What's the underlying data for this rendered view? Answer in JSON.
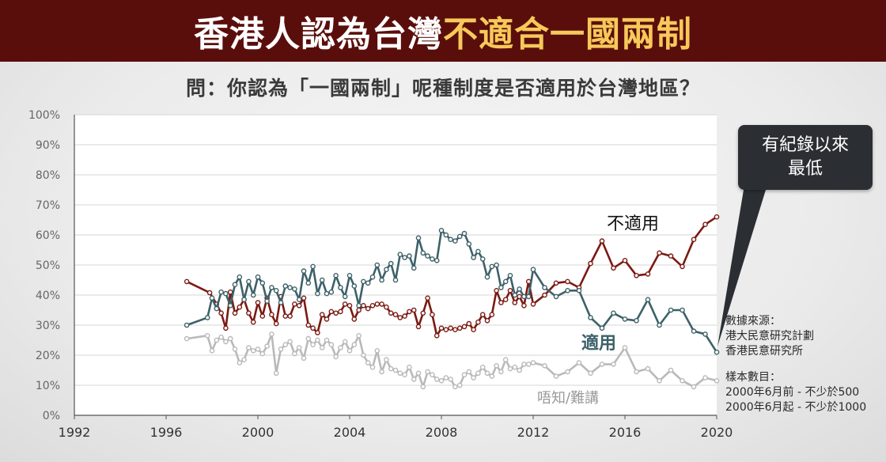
{
  "banner": {
    "title_main": "香港人認為台灣",
    "title_highlight": "不適合一國兩制",
    "bg_color": "#5a0e0b",
    "highlight_color": "#f6c95a"
  },
  "question": "問：你認為「一國兩制」呢種制度是否適用於台灣地區？",
  "callout": {
    "line1": "有紀錄以來",
    "line2": "最低"
  },
  "source_note": {
    "heading": "數據來源：",
    "line1": "港大民意研究計劃",
    "line2": "香港民意研究所"
  },
  "sample_note": {
    "heading": "樣本數目：",
    "line1": "2000年6月前 - 不少於500",
    "line2": "2000年6月起 - 不少於1000"
  },
  "chart_data": {
    "type": "line",
    "title": "",
    "xlabel": "",
    "ylabel": "",
    "xlim": [
      1992,
      2020
    ],
    "ylim": [
      0,
      100
    ],
    "x_ticks": [
      "1992",
      "1996",
      "2000",
      "2004",
      "2008",
      "2012",
      "2016",
      "2020"
    ],
    "y_ticks": [
      "0%",
      "10%",
      "20%",
      "30%",
      "40%",
      "50%",
      "60%",
      "70%",
      "80%",
      "90%",
      "100%"
    ],
    "grid": true,
    "series": [
      {
        "name": "不適用",
        "color": "#7a1a12",
        "x": [
          1996.9,
          1997.9,
          1998.2,
          1998.4,
          1998.6,
          1998.8,
          1999.0,
          1999.2,
          1999.4,
          1999.6,
          1999.8,
          2000.0,
          2000.2,
          2000.4,
          2000.6,
          2000.8,
          2001.0,
          2001.2,
          2001.4,
          2001.6,
          2001.8,
          2002.0,
          2002.2,
          2002.4,
          2002.6,
          2002.8,
          2003.0,
          2003.2,
          2003.4,
          2003.6,
          2003.8,
          2004.0,
          2004.2,
          2004.4,
          2004.6,
          2004.8,
          2005.0,
          2005.2,
          2005.4,
          2005.6,
          2005.8,
          2006.0,
          2006.2,
          2006.4,
          2006.6,
          2006.8,
          2007.0,
          2007.2,
          2007.4,
          2007.6,
          2007.8,
          2008.0,
          2008.2,
          2008.4,
          2008.6,
          2008.8,
          2009.0,
          2009.2,
          2009.4,
          2009.6,
          2009.8,
          2010.0,
          2010.2,
          2010.4,
          2010.6,
          2010.8,
          2011.0,
          2011.2,
          2011.4,
          2011.6,
          2011.8,
          2012.0,
          2012.5,
          2013.0,
          2013.5,
          2014.0,
          2014.5,
          2015.0,
          2015.5,
          2016.0,
          2016.5,
          2017.0,
          2017.5,
          2018.0,
          2018.5,
          2019.0,
          2019.5,
          2020.0
        ],
        "y": [
          44.5,
          40.8,
          37.0,
          34.0,
          29.0,
          41.0,
          34.0,
          36.0,
          38.5,
          34.0,
          31.0,
          37.5,
          33.0,
          39.0,
          33.5,
          30.5,
          39.5,
          33.0,
          33.0,
          37.0,
          36.5,
          39.0,
          30.0,
          29.0,
          27.5,
          33.5,
          32.0,
          34.5,
          34.0,
          34.5,
          37.0,
          36.5,
          32.0,
          35.0,
          36.5,
          35.5,
          36.5,
          37.0,
          37.0,
          36.0,
          34.0,
          33.5,
          32.5,
          33.0,
          34.5,
          35.0,
          29.5,
          34.0,
          39.0,
          33.5,
          26.5,
          29.0,
          28.5,
          29.0,
          28.5,
          29.0,
          29.5,
          30.5,
          28.5,
          31.0,
          33.5,
          31.5,
          33.5,
          41.5,
          37.5,
          38.5,
          41.5,
          37.5,
          39.5,
          36.5,
          44.5,
          37.0,
          40.0,
          44.0,
          44.5,
          42.5,
          50.5,
          58.0,
          49.0,
          51.5,
          46.5,
          47.0,
          54.0,
          53.0,
          49.5,
          58.5,
          63.5,
          66.0
        ]
      },
      {
        "name": "適用",
        "color": "#3d6169",
        "x": [
          1996.9,
          1997.8,
          1998.0,
          1998.2,
          1998.4,
          1998.6,
          1998.8,
          1999.0,
          1999.2,
          1999.4,
          1999.6,
          1999.8,
          2000.0,
          2000.2,
          2000.4,
          2000.6,
          2000.8,
          2001.0,
          2001.2,
          2001.4,
          2001.6,
          2001.8,
          2002.0,
          2002.2,
          2002.4,
          2002.6,
          2002.8,
          2003.0,
          2003.2,
          2003.4,
          2003.6,
          2003.8,
          2004.0,
          2004.2,
          2004.4,
          2004.6,
          2004.8,
          2005.0,
          2005.2,
          2005.4,
          2005.6,
          2005.8,
          2006.0,
          2006.2,
          2006.4,
          2006.6,
          2006.8,
          2007.0,
          2007.2,
          2007.4,
          2007.6,
          2007.8,
          2008.0,
          2008.2,
          2008.4,
          2008.6,
          2008.8,
          2009.0,
          2009.2,
          2009.4,
          2009.6,
          2009.8,
          2010.0,
          2010.2,
          2010.4,
          2010.6,
          2010.8,
          2011.0,
          2011.2,
          2011.4,
          2011.6,
          2011.8,
          2012.0,
          2012.5,
          2013.0,
          2013.5,
          2014.0,
          2014.5,
          2015.0,
          2015.5,
          2016.0,
          2016.5,
          2017.0,
          2017.5,
          2018.0,
          2018.5,
          2019.0,
          2019.5,
          2020.0
        ],
        "y": [
          30.0,
          32.5,
          39.0,
          35.5,
          41.0,
          40.5,
          36.5,
          43.5,
          46.0,
          38.5,
          44.5,
          40.0,
          46.0,
          44.0,
          38.0,
          42.5,
          41.5,
          37.5,
          43.0,
          42.5,
          42.0,
          38.5,
          48.0,
          44.0,
          49.5,
          40.5,
          45.0,
          40.5,
          41.0,
          46.5,
          42.5,
          39.5,
          46.5,
          43.0,
          36.5,
          44.5,
          44.0,
          46.0,
          50.0,
          45.0,
          48.5,
          50.5,
          45.0,
          53.5,
          52.5,
          53.0,
          49.0,
          59.0,
          54.0,
          53.0,
          52.0,
          51.5,
          61.5,
          60.0,
          58.5,
          58.0,
          59.5,
          60.5,
          57.0,
          52.5,
          54.5,
          52.0,
          46.0,
          49.5,
          50.0,
          42.5,
          44.5,
          46.5,
          40.0,
          42.0,
          39.5,
          39.5,
          48.5,
          42.5,
          39.5,
          41.5,
          41.5,
          32.5,
          29.0,
          34.0,
          32.0,
          31.5,
          38.5,
          30.0,
          35.0,
          35.0,
          28.0,
          27.0,
          21.0
        ]
      },
      {
        "name": "唔知/難講",
        "color": "#b9b9b9",
        "x": [
          1996.9,
          1997.8,
          1998.0,
          1998.2,
          1998.4,
          1998.6,
          1998.8,
          1999.0,
          1999.2,
          1999.4,
          1999.6,
          1999.8,
          2000.0,
          2000.2,
          2000.4,
          2000.6,
          2000.8,
          2001.0,
          2001.2,
          2001.4,
          2001.6,
          2001.8,
          2002.0,
          2002.2,
          2002.4,
          2002.6,
          2002.8,
          2003.0,
          2003.2,
          2003.4,
          2003.6,
          2003.8,
          2004.0,
          2004.2,
          2004.4,
          2004.6,
          2004.8,
          2005.0,
          2005.2,
          2005.4,
          2005.6,
          2005.8,
          2006.0,
          2006.2,
          2006.4,
          2006.6,
          2006.8,
          2007.0,
          2007.2,
          2007.4,
          2007.6,
          2007.8,
          2008.0,
          2008.2,
          2008.4,
          2008.6,
          2008.8,
          2009.0,
          2009.2,
          2009.4,
          2009.6,
          2009.8,
          2010.0,
          2010.2,
          2010.4,
          2010.6,
          2010.8,
          2011.0,
          2011.2,
          2011.4,
          2011.6,
          2011.8,
          2012.0,
          2012.5,
          2013.0,
          2013.5,
          2014.0,
          2014.5,
          2015.0,
          2015.5,
          2016.0,
          2016.5,
          2017.0,
          2017.5,
          2018.0,
          2018.5,
          2019.0,
          2019.5,
          2020.0
        ],
        "y": [
          25.5,
          26.5,
          21.5,
          25.0,
          26.0,
          24.5,
          25.5,
          22.0,
          17.5,
          18.5,
          22.5,
          21.5,
          22.0,
          20.5,
          23.0,
          27.0,
          14.0,
          22.0,
          23.5,
          24.5,
          20.5,
          22.5,
          19.0,
          25.5,
          23.5,
          25.0,
          22.5,
          25.0,
          23.5,
          19.5,
          22.5,
          24.5,
          21.5,
          23.5,
          26.5,
          20.0,
          17.5,
          16.0,
          21.5,
          14.5,
          18.5,
          15.5,
          15.0,
          14.0,
          13.5,
          16.0,
          12.0,
          14.0,
          9.5,
          14.5,
          13.5,
          12.0,
          11.5,
          12.5,
          12.0,
          9.5,
          10.0,
          13.5,
          14.5,
          12.5,
          14.0,
          16.0,
          14.0,
          13.0,
          16.5,
          14.5,
          18.5,
          15.5,
          16.0,
          15.0,
          17.0,
          17.0,
          17.5,
          16.5,
          13.0,
          14.5,
          17.5,
          14.0,
          17.0,
          17.0,
          22.5,
          14.5,
          15.5,
          11.5,
          15.0,
          11.5,
          9.5,
          12.5,
          11.5
        ]
      }
    ]
  },
  "series_labels": {
    "not_applicable": "不適用",
    "applicable": "適用",
    "dont_know": "唔知/難講"
  }
}
